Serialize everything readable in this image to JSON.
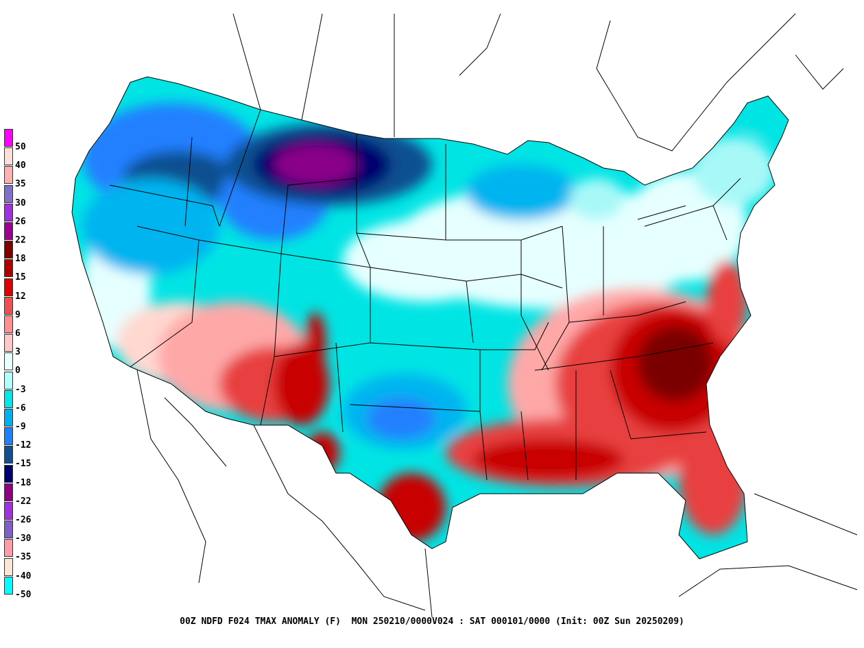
{
  "caption": "00Z NDFD F024 TMAX ANOMALY (F)  MON 250210/0000V024 : SAT 000101/0000 (Init: 00Z Sun 20250209)",
  "legend": [
    {
      "label": "50",
      "color": "#ff00ff"
    },
    {
      "label": "40",
      "color": "#ffe0d8"
    },
    {
      "label": "35",
      "color": "#ffb0b0"
    },
    {
      "label": "30",
      "color": "#8070c8"
    },
    {
      "label": "26",
      "color": "#a030e0"
    },
    {
      "label": "22",
      "color": "#a00090"
    },
    {
      "label": "18",
      "color": "#800000"
    },
    {
      "label": "15",
      "color": "#b00000"
    },
    {
      "label": "12",
      "color": "#e00000"
    },
    {
      "label": "9",
      "color": "#f05050"
    },
    {
      "label": "6",
      "color": "#ff9090"
    },
    {
      "label": "3",
      "color": "#ffc8c8"
    },
    {
      "label": "0",
      "color": "#e8ffff"
    },
    {
      "label": "-3",
      "color": "#b0ffff"
    },
    {
      "label": "-6",
      "color": "#00e8e8"
    },
    {
      "label": "-9",
      "color": "#00b0f0"
    },
    {
      "label": "-12",
      "color": "#2080ff"
    },
    {
      "label": "-15",
      "color": "#105090"
    },
    {
      "label": "-18",
      "color": "#000070"
    },
    {
      "label": "-22",
      "color": "#900080"
    },
    {
      "label": "-26",
      "color": "#a030e0"
    },
    {
      "label": "-30",
      "color": "#8060c8"
    },
    {
      "label": "-35",
      "color": "#ff9ca8"
    },
    {
      "label": "-40",
      "color": "#ffe4d8"
    },
    {
      "label": "-50",
      "color": "#00ffff"
    }
  ],
  "colors": {
    "warm_strong": "#7a0000",
    "warm_mid": "#c80000",
    "warm": "#e84040",
    "warm_light": "#ffa8a8",
    "warm_pale": "#ffd8d0",
    "neutral": "#e6ffff",
    "cool_light": "#a8f8f8",
    "cool": "#00e4e4",
    "cool_mid": "#00b4f0",
    "cool_deep": "#2080ff",
    "cold": "#105090",
    "very_cold": "#00006e",
    "extreme_cold": "#8a0088"
  }
}
